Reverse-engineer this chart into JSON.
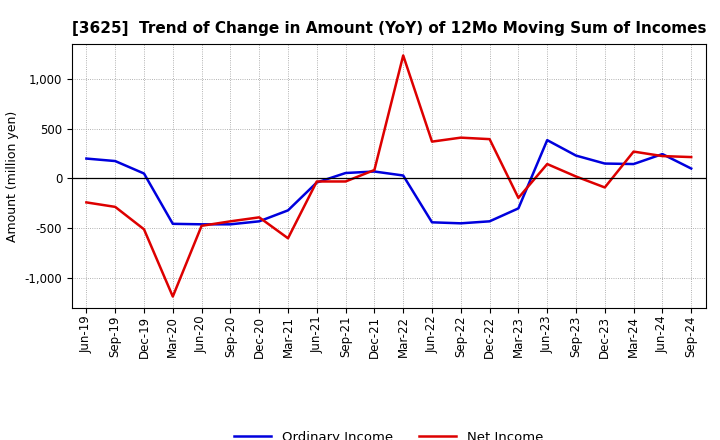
{
  "title": "[3625]  Trend of Change in Amount (YoY) of 12Mo Moving Sum of Incomes",
  "ylabel": "Amount (million yen)",
  "x_labels": [
    "Jun-19",
    "Sep-19",
    "Dec-19",
    "Mar-20",
    "Jun-20",
    "Sep-20",
    "Dec-20",
    "Mar-21",
    "Jun-21",
    "Sep-21",
    "Dec-21",
    "Mar-22",
    "Jun-22",
    "Sep-22",
    "Dec-22",
    "Mar-23",
    "Jun-23",
    "Sep-23",
    "Dec-23",
    "Mar-24",
    "Jun-24",
    "Sep-24"
  ],
  "ordinary_income": [
    200,
    175,
    50,
    -455,
    -460,
    -460,
    -430,
    -320,
    -40,
    55,
    70,
    30,
    -440,
    -450,
    -430,
    -300,
    385,
    230,
    150,
    145,
    245,
    100
  ],
  "net_income": [
    -240,
    -285,
    -510,
    -1185,
    -475,
    -430,
    -390,
    -600,
    -30,
    -30,
    85,
    1235,
    370,
    410,
    395,
    -195,
    145,
    20,
    -90,
    270,
    225,
    215
  ],
  "ordinary_color": "#0000dd",
  "net_color": "#dd0000",
  "ylim": [
    -1300,
    1350
  ],
  "yticks": [
    -1000,
    -500,
    0,
    500,
    1000
  ],
  "background_color": "#ffffff",
  "grid_color": "#999999",
  "legend_ordinary": "Ordinary Income",
  "legend_net": "Net Income",
  "title_fontsize": 11,
  "ylabel_fontsize": 9,
  "tick_fontsize": 8.5,
  "legend_fontsize": 9.5
}
